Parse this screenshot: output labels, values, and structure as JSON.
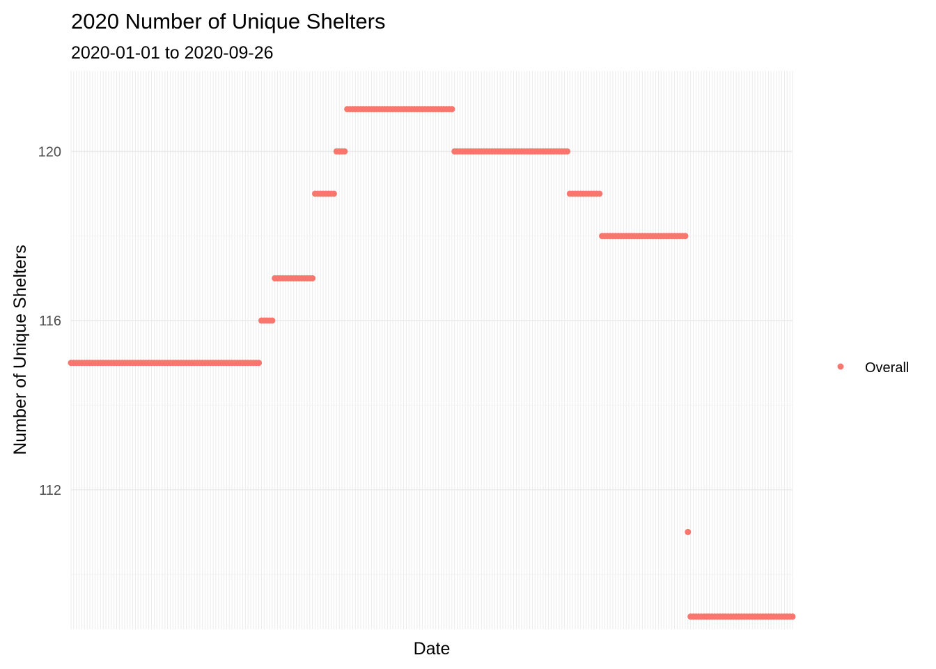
{
  "chart_data": {
    "type": "scatter",
    "title": "2020 Number of Unique Shelters",
    "subtitle": "2020-01-01 to 2020-09-26",
    "xlabel": "Date",
    "ylabel": "Number of Unique Shelters",
    "x_range": [
      "2020-01-01",
      "2020-09-26"
    ],
    "ylim": [
      108.7,
      121.9
    ],
    "y_ticks": [
      112,
      116,
      120
    ],
    "y_tick_labels": [
      "112",
      "116",
      "120"
    ],
    "grid": true,
    "legend": {
      "position": "right",
      "entries": [
        "Overall"
      ]
    },
    "colors": {
      "Overall": "#F8766D"
    },
    "series": [
      {
        "name": "Overall",
        "segments": [
          {
            "start": "2020-01-01",
            "end": "2020-03-11",
            "value": 115
          },
          {
            "start": "2020-03-12",
            "end": "2020-03-16",
            "value": 116
          },
          {
            "start": "2020-03-17",
            "end": "2020-03-31",
            "value": 117
          },
          {
            "start": "2020-04-01",
            "end": "2020-04-08",
            "value": 119
          },
          {
            "start": "2020-04-09",
            "end": "2020-04-12",
            "value": 120
          },
          {
            "start": "2020-04-13",
            "end": "2020-05-22",
            "value": 121
          },
          {
            "start": "2020-05-23",
            "end": "2020-07-04",
            "value": 120
          },
          {
            "start": "2020-07-05",
            "end": "2020-07-16",
            "value": 119
          },
          {
            "start": "2020-07-17",
            "end": "2020-08-17",
            "value": 118
          },
          {
            "start": "2020-08-18",
            "end": "2020-08-18",
            "value": 111
          },
          {
            "start": "2020-08-19",
            "end": "2020-09-26",
            "value": 109
          }
        ]
      }
    ]
  }
}
